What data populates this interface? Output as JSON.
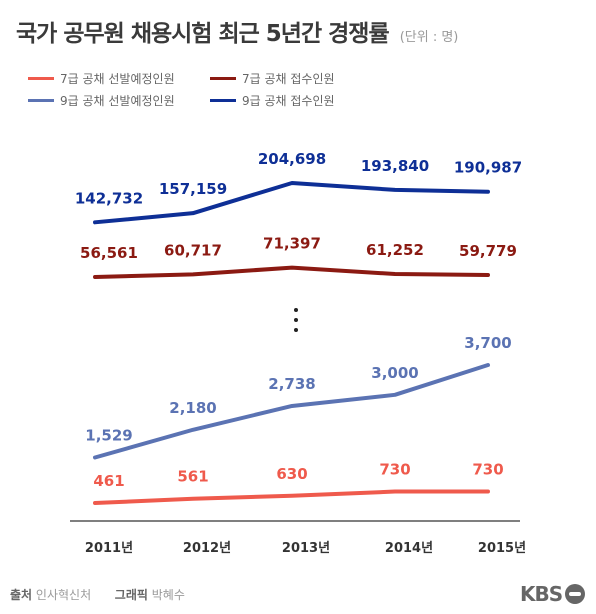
{
  "header": {
    "title": "국가 공무원 채용시험 최근 5년간 경쟁률",
    "unit": "(단위 : 명)"
  },
  "footer": {
    "source_label": "출처",
    "source": "인사혁신처",
    "graphic_label": "그래픽",
    "graphic": "박혜수"
  },
  "logo": {
    "text": "KBS"
  },
  "colors": {
    "grade7_selected": "#ef5a4c",
    "grade7_applicants": "#8b1a12",
    "grade9_selected": "#5b73b3",
    "grade9_applicants": "#0e2f96",
    "axis": "#555555"
  },
  "chart_data": {
    "type": "line",
    "title": "국가 공무원 채용시험 최근 5년간 경쟁률",
    "unit": "(단위 : 명)",
    "x": [
      "2011년",
      "2012년",
      "2013년",
      "2014년",
      "2015년"
    ],
    "axis_break": true,
    "legend_position": "top-left",
    "series": [
      {
        "key": "g7sel",
        "name": "7급 공채 선발예정인원",
        "values": [
          461,
          561,
          630,
          730,
          730
        ],
        "labels": [
          "461",
          "561",
          "630",
          "730",
          "730"
        ]
      },
      {
        "key": "g7app",
        "name": "7급 공채 접수인원",
        "values": [
          56561,
          60717,
          71397,
          61252,
          59779
        ],
        "labels": [
          "56,561",
          "60,717",
          "71,397",
          "61,252",
          "59,779"
        ]
      },
      {
        "key": "g9sel",
        "name": "9급 공채 선발예정인원",
        "values": [
          1529,
          2180,
          2738,
          3000,
          3700
        ],
        "labels": [
          "1,529",
          "2,180",
          "2,738",
          "3,000",
          "3,700"
        ]
      },
      {
        "key": "g9app",
        "name": "9급 공채 접수인원",
        "values": [
          142732,
          157159,
          204698,
          193840,
          190987
        ],
        "labels": [
          "142,732",
          "157,159",
          "204,698",
          "193,840",
          "190,987"
        ]
      }
    ]
  }
}
